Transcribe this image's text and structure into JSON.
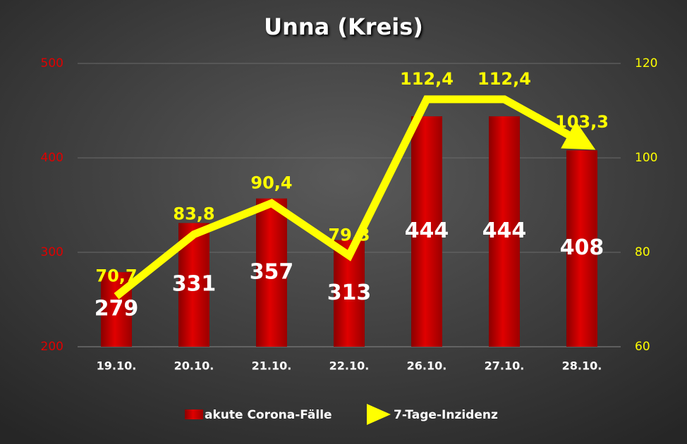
{
  "chart_data": {
    "type": "bar-line",
    "title": "Unna (Kreis)",
    "categories": [
      "19.10.",
      "20.10.",
      "21.10.",
      "22.10.",
      "26.10.",
      "27.10.",
      "28.10."
    ],
    "series": [
      {
        "name": "akute Corona-Fälle",
        "type": "bar",
        "color": "#cc0000",
        "values": [
          279,
          331,
          357,
          313,
          444,
          444,
          408
        ]
      },
      {
        "name": "7-Tage-Inzidenz",
        "type": "line",
        "axis": "y2",
        "color": "#ffff00",
        "values": [
          70.7,
          83.8,
          90.4,
          79.3,
          112.4,
          112.4,
          103.3
        ],
        "value_labels": [
          "70,7",
          "83,8",
          "90,4",
          "79,3",
          "112,4",
          "112,4",
          "103,3"
        ]
      }
    ],
    "ylim": [
      200,
      500
    ],
    "yticks": [
      200,
      300,
      400,
      500
    ],
    "y_color": "#e00000",
    "y2lim": [
      60,
      120
    ],
    "y2ticks": [
      60,
      80,
      100,
      120
    ],
    "y2_color": "#ffff00",
    "grid": true
  }
}
